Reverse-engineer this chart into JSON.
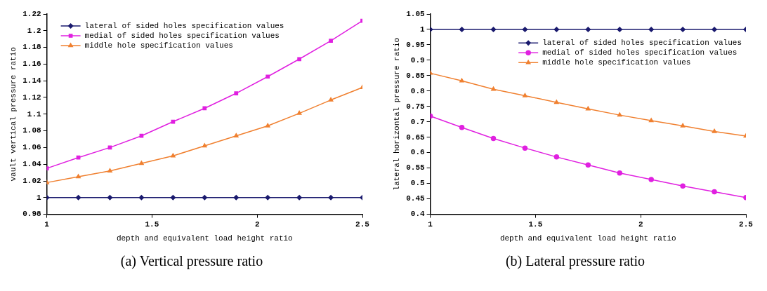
{
  "chart_data": [
    {
      "type": "line",
      "title": "(a) Vertical pressure ratio",
      "xlabel": "depth and equivalent load height ratio",
      "ylabel": "vault vertical pressure ratio",
      "x": [
        1,
        1.15,
        1.3,
        1.45,
        1.6,
        1.75,
        1.9,
        2.05,
        2.2,
        2.35,
        2.5
      ],
      "series": [
        {
          "name": "lateral of sided holes specification values",
          "color": "#1a1a6e",
          "marker": "diamond",
          "values": [
            1,
            1,
            1,
            1,
            1,
            1,
            1,
            1,
            1,
            1,
            1
          ]
        },
        {
          "name": "medial of sided holes specification values",
          "color": "#e020e0",
          "marker": "square",
          "values": [
            1.035,
            1.048,
            1.06,
            1.074,
            1.091,
            1.107,
            1.125,
            1.145,
            1.166,
            1.188,
            1.212
          ]
        },
        {
          "name": "middle hole specification values",
          "color": "#f08030",
          "marker": "triangle",
          "values": [
            1.018,
            1.025,
            1.032,
            1.041,
            1.05,
            1.062,
            1.074,
            1.086,
            1.101,
            1.117,
            1.132
          ]
        }
      ],
      "xlim": [
        1,
        2.5
      ],
      "xticks": [
        1,
        1.5,
        2,
        2.5
      ],
      "ylim": [
        0.98,
        1.22
      ],
      "yticks": [
        0.98,
        1,
        1.02,
        1.04,
        1.06,
        1.08,
        1.1,
        1.12,
        1.14,
        1.16,
        1.18,
        1.2,
        1.22
      ],
      "grid": false,
      "legend": "top left"
    },
    {
      "type": "line",
      "title": "(b) Lateral pressure ratio",
      "xlabel": "depth and equivalent load height ratio",
      "ylabel": "lateral horizontal pressure ratio",
      "x": [
        1,
        1.15,
        1.3,
        1.45,
        1.6,
        1.75,
        1.9,
        2.05,
        2.2,
        2.35,
        2.5
      ],
      "series": [
        {
          "name": "lateral of sided holes specification values",
          "color": "#1a1a6e",
          "marker": "diamond",
          "values": [
            1,
            1,
            1,
            1,
            1,
            1,
            1,
            1,
            1,
            1,
            1
          ]
        },
        {
          "name": "medial of sided holes specification values",
          "color": "#e020e0",
          "marker": "circle",
          "values": [
            0.719,
            0.682,
            0.646,
            0.615,
            0.586,
            0.56,
            0.534,
            0.513,
            0.492,
            0.473,
            0.454
          ]
        },
        {
          "name": "middle hole specification values",
          "color": "#f08030",
          "marker": "triangle",
          "values": [
            0.858,
            0.833,
            0.806,
            0.785,
            0.763,
            0.742,
            0.722,
            0.704,
            0.687,
            0.669,
            0.654
          ]
        }
      ],
      "xlim": [
        1,
        2.5
      ],
      "xticks": [
        1,
        1.5,
        2,
        2.5
      ],
      "ylim": [
        0.4,
        1.05
      ],
      "yticks": [
        0.4,
        0.45,
        0.5,
        0.55,
        0.6,
        0.65,
        0.7,
        0.75,
        0.8,
        0.85,
        0.9,
        0.95,
        1,
        1.05
      ],
      "grid": false,
      "legend": "top right"
    }
  ]
}
